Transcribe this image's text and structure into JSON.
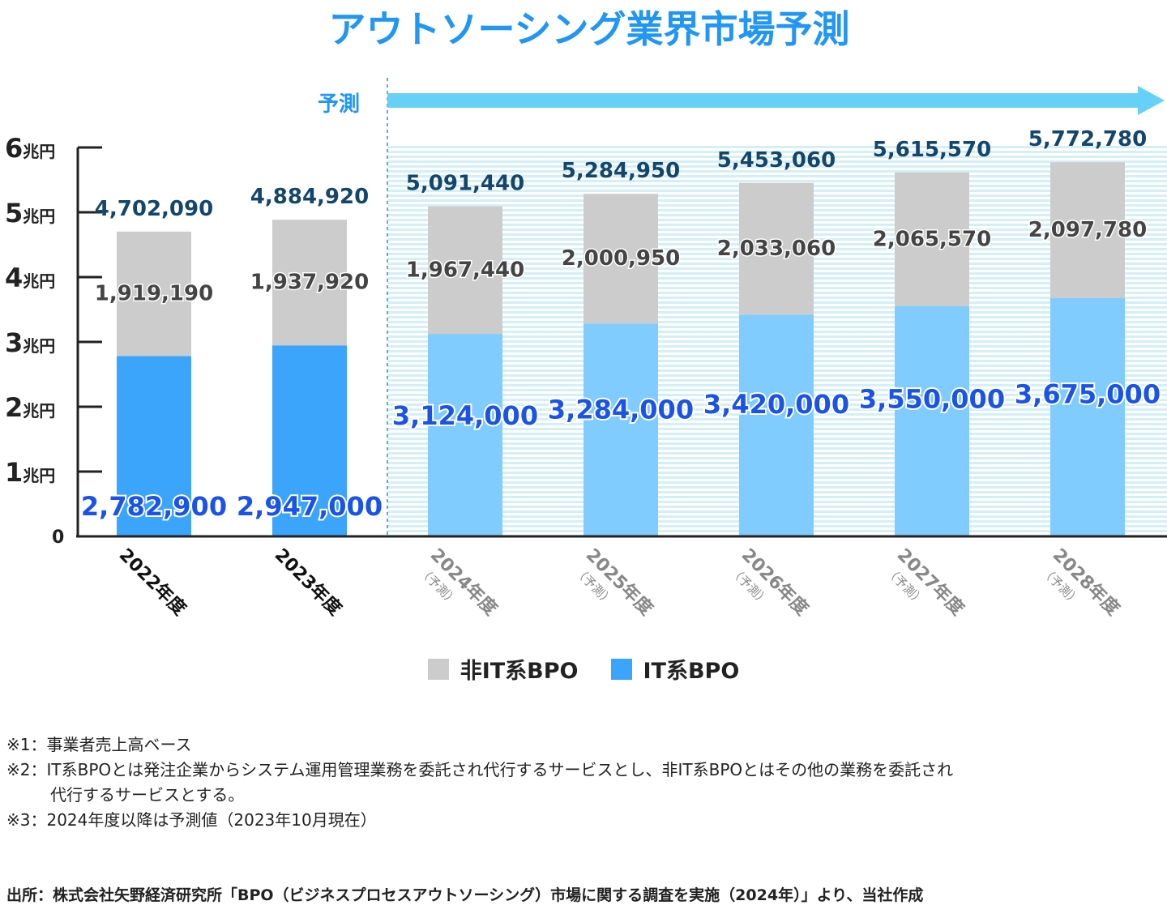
{
  "chart_data": {
    "type": "bar",
    "stacked": true,
    "title": "アウトソーシング業界市場予測",
    "forecast_label": "予測",
    "categories": [
      "2022年度",
      "2023年度",
      "2024年度",
      "2025年度",
      "2026年度",
      "2027年度",
      "2028年度"
    ],
    "category_sublabels": [
      "",
      "",
      "（予測）",
      "（予測）",
      "（予測）",
      "（予測）",
      "（予測）"
    ],
    "forecast_start_index": 2,
    "y_ticks": [
      {
        "value": 0,
        "num": "0",
        "unit": ""
      },
      {
        "value": 1000000,
        "num": "1",
        "unit": "兆円"
      },
      {
        "value": 2000000,
        "num": "2",
        "unit": "兆円"
      },
      {
        "value": 3000000,
        "num": "3",
        "unit": "兆円"
      },
      {
        "value": 4000000,
        "num": "4",
        "unit": "兆円"
      },
      {
        "value": 5000000,
        "num": "5",
        "unit": "兆円"
      },
      {
        "value": 6000000,
        "num": "6",
        "unit": "兆円"
      }
    ],
    "ylim": [
      0,
      6000000
    ],
    "series": [
      {
        "name": "IT系BPO",
        "values": [
          2782900,
          2947000,
          3124000,
          3284000,
          3420000,
          3550000,
          3675000
        ],
        "labels": [
          "2,782,900",
          "2,947,000",
          "3,124,000",
          "3,284,000",
          "3,420,000",
          "3,550,000",
          "3,675,000"
        ]
      },
      {
        "name": "非IT系BPO",
        "values": [
          1919190,
          1937920,
          1967440,
          2000950,
          2033060,
          2065570,
          2097780
        ],
        "labels": [
          "1,919,190",
          "1,937,920",
          "1,967,440",
          "2,000,950",
          "2,033,060",
          "2,065,570",
          "2,097,780"
        ]
      }
    ],
    "totals": [
      4702090,
      4884920,
      5091440,
      5284950,
      5453060,
      5615570,
      5772780
    ],
    "total_labels": [
      "4,702,090",
      "4,884,920",
      "5,091,440",
      "5,284,950",
      "5,453,060",
      "5,615,570",
      "5,772,780"
    ],
    "legend": [
      {
        "name": "非IT系BPO",
        "color": "#cccccc"
      },
      {
        "name": "IT系BPO",
        "color": "#3ba5fb"
      }
    ],
    "colors": {
      "it_actual": "#3ba5fb",
      "it_forecast": "#80cbff",
      "non_it": "#cccccc",
      "title": "#2196f3",
      "it_label": "#1a53e6",
      "non_it_label": "#444444",
      "total_label": "#14466b",
      "arrow": "#66d0f6",
      "forecast_dashed": "#2d8fd0"
    }
  },
  "notes": [
    "※1：事業者売上高ベース",
    "※2：IT系BPOとは発注企業からシステム運用管理業務を委託され代行するサービスとし、非IT系BPOとはその他の業務を委託され",
    "代行するサービスとする。",
    "※3：2024年度以降は予測値（2023年10月現在）"
  ],
  "source": "出所：株式会社矢野経済研究所「BPO（ビジネスプロセスアウトソーシング）市場に関する調査を実施（2024年）」より、当社作成"
}
